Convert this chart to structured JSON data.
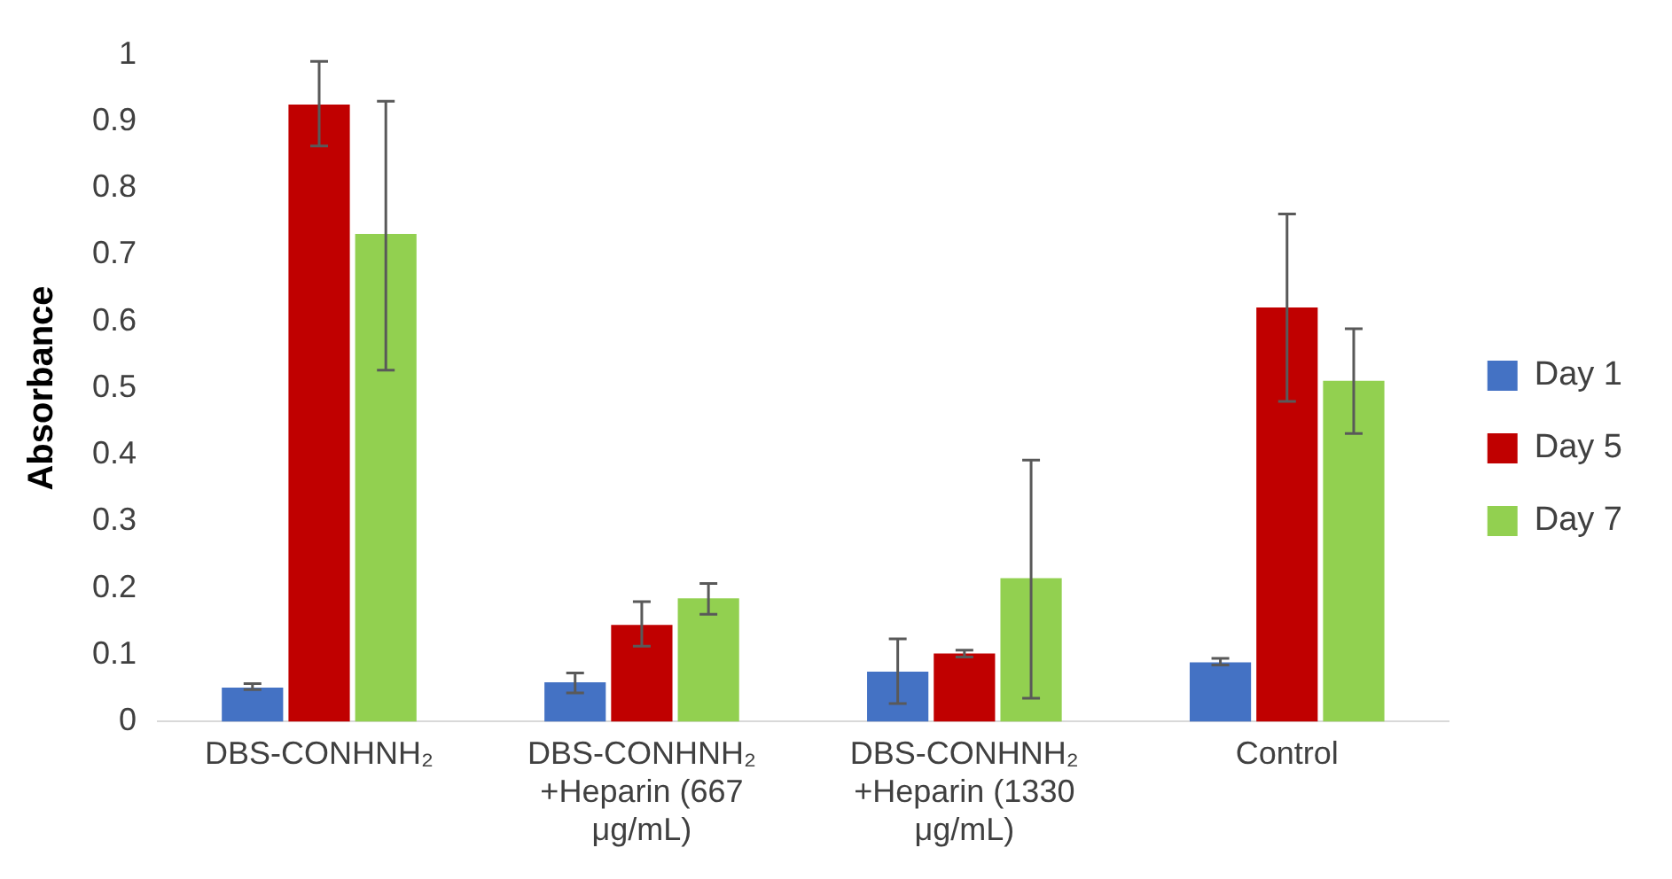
{
  "chart_data": {
    "type": "bar",
    "ylabel": "Absorbance",
    "categories": [
      "DBS-CONHNH₂",
      "DBS-CONHNH₂ +Heparin (667 μg/mL)",
      "DBS-CONHNH₂ +Heparin (1330 μg/mL)",
      "Control"
    ],
    "series": [
      {
        "name": "Day 1",
        "color": "#4472c4",
        "values": [
          0.051,
          0.059,
          0.075,
          0.089
        ],
        "errors": [
          [
            0.048,
            0.057
          ],
          [
            0.043,
            0.073
          ],
          [
            0.027,
            0.124
          ],
          [
            0.085,
            0.095
          ]
        ]
      },
      {
        "name": "Day 5",
        "color": "#c00000",
        "values": [
          0.925,
          0.145,
          0.102,
          0.621
        ],
        "errors": [
          [
            0.863,
            0.99
          ],
          [
            0.113,
            0.18
          ],
          [
            0.097,
            0.107
          ],
          [
            0.48,
            0.761
          ]
        ]
      },
      {
        "name": "Day 7",
        "color": "#92d050",
        "values": [
          0.731,
          0.185,
          0.215,
          0.511
        ],
        "errors": [
          [
            0.527,
            0.93
          ],
          [
            0.161,
            0.207
          ],
          [
            0.035,
            0.392
          ],
          [
            0.432,
            0.589
          ]
        ]
      }
    ],
    "ylim": [
      0,
      1
    ],
    "yticks": [
      0,
      0.1,
      0.2,
      0.3,
      0.4,
      0.5,
      0.6,
      0.7,
      0.8,
      0.9,
      1
    ],
    "grid": false,
    "legend": "right"
  }
}
